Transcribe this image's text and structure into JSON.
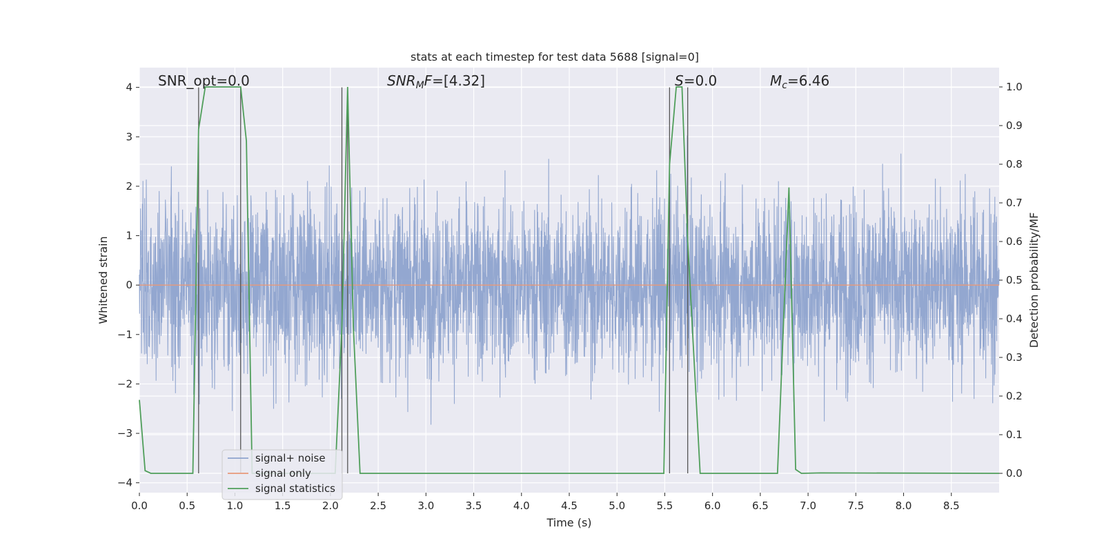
{
  "chart_data": {
    "type": "line",
    "title": "stats at each timestep for test data 5688 [signal=0]",
    "xlabel": "Time (s)",
    "ylabel": "Whitened strain",
    "y2label": "Detection probability/MF",
    "xlim": [
      0,
      9.0
    ],
    "ylim": [
      -4.2,
      4.4
    ],
    "y2lim": [
      -0.05,
      1.05
    ],
    "xticks": [
      "0.0",
      "0.5",
      "1.0",
      "1.5",
      "2.0",
      "2.5",
      "3.0",
      "3.5",
      "4.0",
      "4.5",
      "5.0",
      "5.5",
      "6.0",
      "6.5",
      "7.0",
      "7.5",
      "8.0",
      "8.5"
    ],
    "yticks": [
      "4",
      "3",
      "2",
      "1",
      "0",
      "−1",
      "−2",
      "−3",
      "−4"
    ],
    "y2ticks": [
      "1.0",
      "0.9",
      "0.8",
      "0.7",
      "0.6",
      "0.5",
      "0.4",
      "0.3",
      "0.2",
      "0.1",
      "0.0"
    ],
    "grid": true,
    "legend_position": "lower-left",
    "annotations": {
      "snr_opt": "SNR_opt=0.0",
      "snr_mf_prefix": "SNR",
      "snr_mf_sub": "M",
      "snr_mf_suffix": "F=[4.32]",
      "s_prefix": "S",
      "s_suffix": "=0.0",
      "mc_prefix": "M",
      "mc_sub": "c",
      "mc_suffix": "=6.46"
    },
    "series": [
      {
        "name": "signal+ noise",
        "color": "#8ea3cd",
        "description_range": [
          -4.0,
          4.0
        ]
      },
      {
        "name": "signal only",
        "color": "#e89979",
        "x": [
          0,
          9.0
        ],
        "y": [
          0,
          0
        ]
      },
      {
        "name": "signal statistics",
        "color": "#4f9e5a",
        "axis": "right",
        "x": [
          0.0,
          0.06,
          0.12,
          0.56,
          0.62,
          0.69,
          0.75,
          1.06,
          1.12,
          1.18,
          1.25,
          2.05,
          2.12,
          2.18,
          2.24,
          2.31,
          5.49,
          5.55,
          5.62,
          5.68,
          5.74,
          5.87,
          6.68,
          6.8,
          6.87,
          6.93,
          7.13,
          9.0
        ],
        "y": [
          0.19,
          0.007,
          0.0,
          0.0,
          0.89,
          1.0,
          1.0,
          1.0,
          0.86,
          0.0,
          0.0,
          0.0,
          0.38,
          1.0,
          0.38,
          0.0,
          0.0,
          0.8,
          1.0,
          1.0,
          0.6,
          0.0,
          0.0,
          0.74,
          0.01,
          0.0,
          0.001,
          0.0
        ]
      }
    ],
    "markers_x": [
      0.62,
      1.06,
      2.12,
      2.18,
      5.55,
      5.74
    ]
  }
}
